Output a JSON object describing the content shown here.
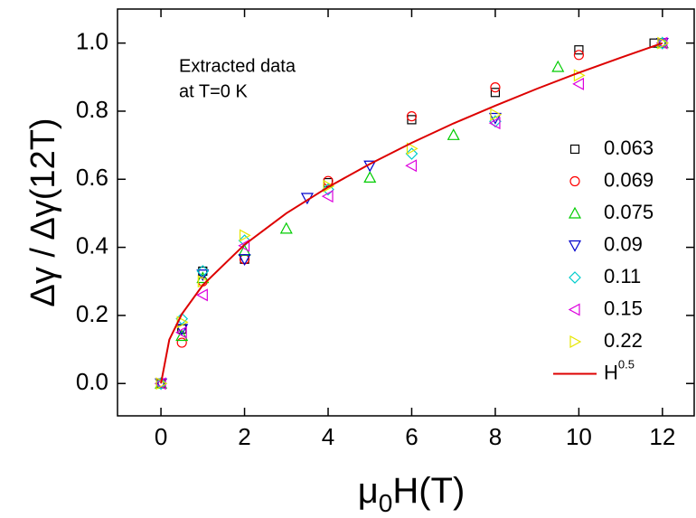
{
  "chart_data": {
    "type": "scatter",
    "xlabel": {
      "main": "μ",
      "sub": "0",
      "tail": "H(T)"
    },
    "ylabel": "Δγ / Δγ(12T)",
    "annotations": [
      "Extracted data",
      "at T=0 K"
    ],
    "xlim": [
      -1.04,
      12.76
    ],
    "ylim": [
      -0.095,
      1.1
    ],
    "xticks": [
      0,
      2,
      4,
      6,
      8,
      10,
      12
    ],
    "yticks": [
      {
        "value": 0,
        "label": "0.0"
      },
      {
        "value": 0.2,
        "label": "0.2"
      },
      {
        "value": 0.4,
        "label": "0.4"
      },
      {
        "value": 0.6,
        "label": "0.6"
      },
      {
        "value": 0.8,
        "label": "0.8"
      },
      {
        "value": 1.0,
        "label": "1.0"
      }
    ],
    "series": [
      {
        "name": "0.063",
        "marker": "square",
        "color": "#000000",
        "x": [
          0,
          0.5,
          1,
          2,
          4,
          6,
          8,
          10,
          11.8
        ],
        "values": [
          0,
          0.16,
          0.33,
          0.365,
          0.59,
          0.775,
          0.855,
          0.98,
          1.0
        ]
      },
      {
        "name": "0.069",
        "marker": "circle",
        "color": "#ff0000",
        "x": [
          0,
          0.5,
          1,
          2,
          4,
          6,
          8,
          10,
          12
        ],
        "values": [
          0,
          0.12,
          0.3,
          0.365,
          0.595,
          0.785,
          0.87,
          0.965,
          1.0
        ]
      },
      {
        "name": "0.075",
        "marker": "up",
        "color": "#00cc00",
        "x": [
          0,
          0.5,
          1,
          2,
          3,
          5,
          7,
          9.5,
          12
        ],
        "values": [
          0,
          0.14,
          0.31,
          0.39,
          0.455,
          0.605,
          0.73,
          0.93,
          1.0
        ]
      },
      {
        "name": "0.09",
        "marker": "down",
        "color": "#0000cc",
        "x": [
          0,
          0.5,
          1,
          2,
          3.5,
          5,
          8,
          12
        ],
        "values": [
          0,
          0.16,
          0.32,
          0.365,
          0.545,
          0.64,
          0.78,
          1.0
        ]
      },
      {
        "name": "0.11",
        "marker": "diamond",
        "color": "#00cccc",
        "x": [
          0,
          0.5,
          1,
          2,
          4,
          6,
          8,
          12
        ],
        "values": [
          0,
          0.19,
          0.33,
          0.42,
          0.57,
          0.675,
          0.77,
          1.0
        ]
      },
      {
        "name": "0.15",
        "marker": "left",
        "color": "#dd00dd",
        "x": [
          0,
          0.5,
          1,
          2,
          4,
          6,
          8,
          10,
          12
        ],
        "values": [
          0,
          0.15,
          0.26,
          0.405,
          0.55,
          0.64,
          0.765,
          0.88,
          1.0
        ]
      },
      {
        "name": "0.22",
        "marker": "right",
        "color": "#e6e600",
        "x": [
          0,
          0.5,
          1,
          2,
          4,
          6,
          8,
          10,
          12
        ],
        "values": [
          0,
          0.18,
          0.3,
          0.435,
          0.58,
          0.69,
          0.79,
          0.905,
          1.0
        ]
      },
      {
        "name": "H",
        "exponent": "0.5",
        "marker": "line",
        "color": "#dd0000",
        "x": [
          0,
          0.2,
          0.5,
          1,
          2,
          3,
          4,
          5,
          6,
          7,
          8,
          9,
          10,
          11,
          12
        ],
        "values": [
          0,
          0.129,
          0.204,
          0.289,
          0.408,
          0.5,
          0.577,
          0.645,
          0.707,
          0.764,
          0.816,
          0.866,
          0.913,
          0.957,
          1.0
        ]
      }
    ]
  }
}
